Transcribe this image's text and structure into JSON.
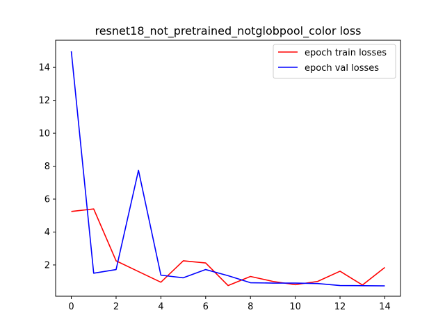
{
  "chart_data": {
    "type": "line",
    "title": "resnet18_not_pretrained_notglobpool_color loss",
    "xlabel": "",
    "ylabel": "",
    "x": [
      0,
      1,
      2,
      3,
      4,
      5,
      6,
      7,
      8,
      9,
      10,
      11,
      12,
      13,
      14
    ],
    "xlim": [
      -0.7,
      14.7
    ],
    "ylim": [
      0.1,
      15.65
    ],
    "xticks": [
      0,
      2,
      4,
      6,
      8,
      10,
      12,
      14
    ],
    "yticks": [
      2,
      4,
      6,
      8,
      10,
      12,
      14
    ],
    "grid": false,
    "legend_position": "top-right",
    "series": [
      {
        "name": "epoch train losses",
        "color": "#ff0000",
        "values": [
          5.25,
          5.4,
          2.25,
          1.6,
          0.95,
          2.25,
          2.12,
          0.75,
          1.3,
          1.0,
          0.8,
          1.0,
          1.62,
          0.78,
          1.85
        ]
      },
      {
        "name": "epoch val losses",
        "color": "#0000ff",
        "values": [
          14.98,
          1.5,
          1.72,
          7.75,
          1.38,
          1.22,
          1.72,
          1.35,
          0.92,
          0.9,
          0.9,
          0.87,
          0.75,
          0.74,
          0.73
        ]
      }
    ]
  }
}
